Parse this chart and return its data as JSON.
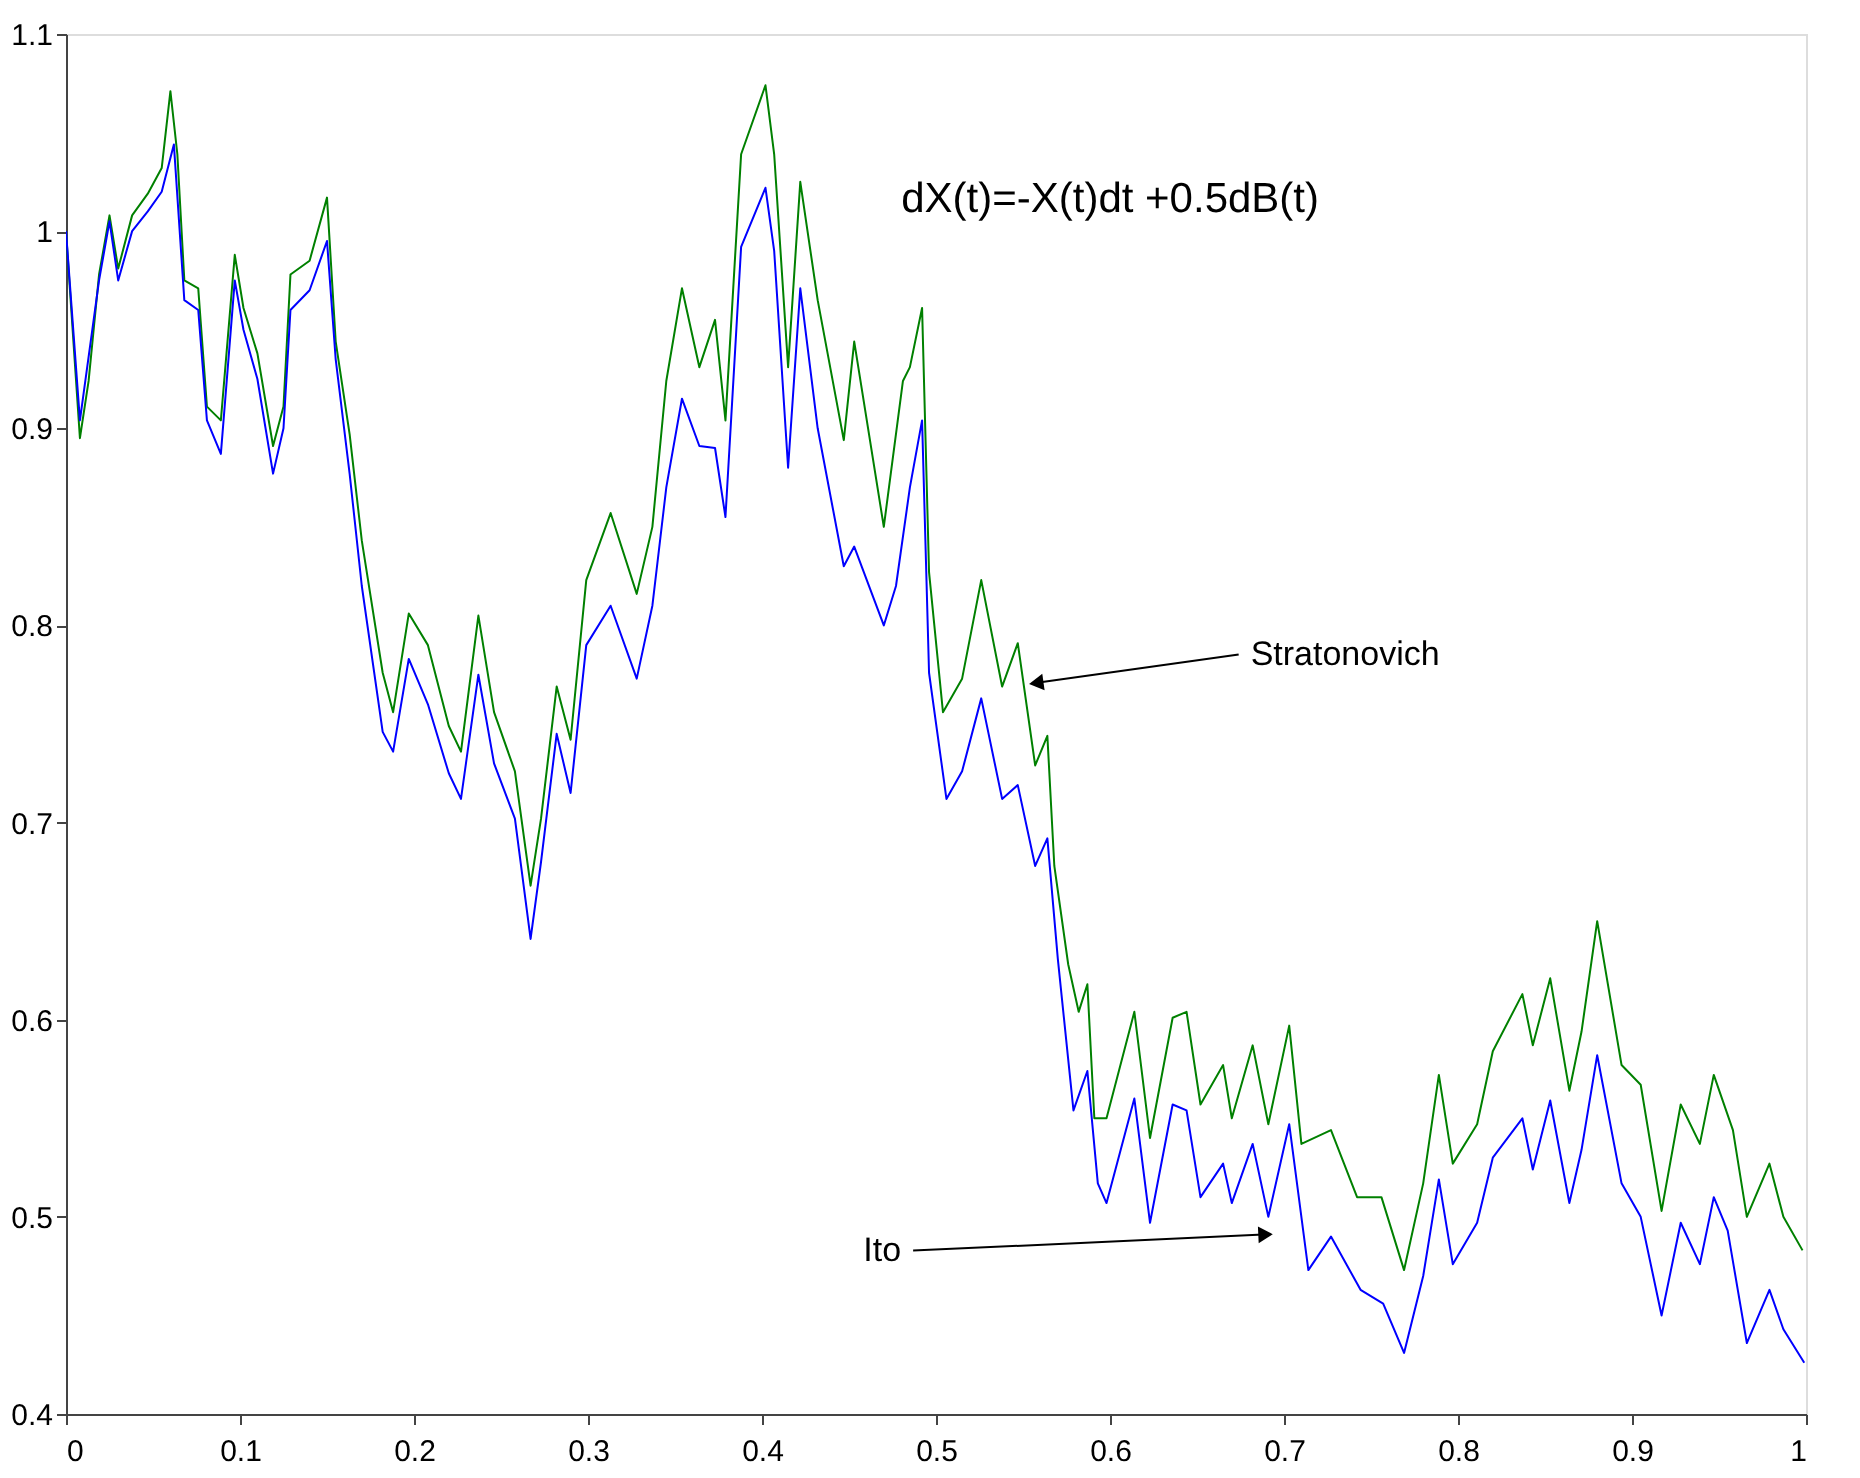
{
  "chart_data": {
    "type": "line",
    "xlim": [
      0,
      1
    ],
    "ylim": [
      0.4,
      1.1
    ],
    "xticks": [
      0,
      0.1,
      0.2,
      0.3,
      0.4,
      0.5,
      0.6,
      0.7,
      0.8,
      0.9,
      1
    ],
    "yticks": [
      0.4,
      0.5,
      0.6,
      0.7,
      0.8,
      0.9,
      1,
      1.1
    ],
    "grid": false,
    "line_style": "solid",
    "series": [
      {
        "color": "#008000",
        "x": [
          0,
          0.008,
          0.013,
          0.019,
          0.025,
          0.03,
          0.038,
          0.047,
          0.055,
          0.06,
          0.064,
          0.068,
          0.076,
          0.081,
          0.089,
          0.097,
          0.102,
          0.11,
          0.119,
          0.125,
          0.129,
          0.14,
          0.15,
          0.155,
          0.163,
          0.17,
          0.182,
          0.188,
          0.197,
          0.208,
          0.22,
          0.227,
          0.237,
          0.246,
          0.258,
          0.267,
          0.273,
          0.282,
          0.29,
          0.299,
          0.313,
          0.328,
          0.337,
          0.345,
          0.354,
          0.364,
          0.373,
          0.379,
          0.388,
          0.402,
          0.407,
          0.415,
          0.422,
          0.432,
          0.447,
          0.453,
          0.47,
          0.481,
          0.485,
          0.492,
          0.496,
          0.504,
          0.515,
          0.526,
          0.538,
          0.547,
          0.557,
          0.564,
          0.568,
          0.576,
          0.582,
          0.587,
          0.591,
          0.598,
          0.614,
          0.623,
          0.636,
          0.644,
          0.652,
          0.665,
          0.67,
          0.682,
          0.691,
          0.703,
          0.71,
          0.727,
          0.742,
          0.756,
          0.769,
          0.78,
          0.789,
          0.797,
          0.811,
          0.82,
          0.837,
          0.843,
          0.853,
          0.864,
          0.871,
          0.88,
          0.894,
          0.905,
          0.917,
          0.928,
          0.939,
          0.947,
          0.958,
          0.966,
          0.979,
          0.987,
          0.998
        ],
        "values": [
          1.0,
          0.895,
          0.924,
          0.978,
          1.008,
          0.981,
          1.008,
          1.019,
          1.032,
          1.071,
          1.039,
          0.975,
          0.971,
          0.911,
          0.904,
          0.988,
          0.961,
          0.938,
          0.891,
          0.911,
          0.978,
          0.985,
          1.017,
          0.944,
          0.897,
          0.843,
          0.776,
          0.756,
          0.806,
          0.79,
          0.749,
          0.736,
          0.805,
          0.756,
          0.726,
          0.668,
          0.702,
          0.769,
          0.742,
          0.823,
          0.857,
          0.816,
          0.85,
          0.924,
          0.971,
          0.931,
          0.955,
          0.904,
          1.039,
          1.074,
          1.039,
          0.931,
          1.025,
          0.965,
          0.894,
          0.944,
          0.85,
          0.924,
          0.931,
          0.961,
          0.827,
          0.756,
          0.773,
          0.823,
          0.769,
          0.791,
          0.729,
          0.744,
          0.678,
          0.628,
          0.604,
          0.618,
          0.55,
          0.55,
          0.604,
          0.54,
          0.601,
          0.604,
          0.557,
          0.577,
          0.55,
          0.587,
          0.547,
          0.597,
          0.537,
          0.544,
          0.51,
          0.51,
          0.473,
          0.517,
          0.572,
          0.527,
          0.547,
          0.584,
          0.613,
          0.587,
          0.621,
          0.564,
          0.594,
          0.65,
          0.577,
          0.567,
          0.503,
          0.557,
          0.537,
          0.572,
          0.544,
          0.5,
          0.527,
          0.5,
          0.483
        ]
      },
      {
        "color": "#0000ff",
        "x": [
          0,
          0.008,
          0.019,
          0.025,
          0.03,
          0.038,
          0.047,
          0.055,
          0.062,
          0.068,
          0.076,
          0.081,
          0.089,
          0.097,
          0.102,
          0.11,
          0.119,
          0.125,
          0.129,
          0.14,
          0.15,
          0.155,
          0.163,
          0.17,
          0.182,
          0.188,
          0.197,
          0.208,
          0.22,
          0.227,
          0.237,
          0.246,
          0.258,
          0.267,
          0.273,
          0.282,
          0.29,
          0.299,
          0.313,
          0.328,
          0.337,
          0.345,
          0.354,
          0.364,
          0.373,
          0.379,
          0.388,
          0.402,
          0.407,
          0.415,
          0.422,
          0.432,
          0.447,
          0.453,
          0.47,
          0.477,
          0.485,
          0.492,
          0.496,
          0.506,
          0.515,
          0.526,
          0.538,
          0.547,
          0.557,
          0.564,
          0.57,
          0.579,
          0.587,
          0.593,
          0.598,
          0.614,
          0.623,
          0.636,
          0.644,
          0.652,
          0.665,
          0.67,
          0.682,
          0.691,
          0.703,
          0.714,
          0.727,
          0.744,
          0.757,
          0.769,
          0.78,
          0.789,
          0.797,
          0.811,
          0.82,
          0.837,
          0.843,
          0.853,
          0.864,
          0.871,
          0.88,
          0.894,
          0.905,
          0.917,
          0.928,
          0.939,
          0.947,
          0.955,
          0.966,
          0.979,
          0.987,
          0.999
        ],
        "values": [
          1.0,
          0.904,
          0.975,
          1.005,
          0.975,
          1.0,
          1.01,
          1.02,
          1.044,
          0.965,
          0.96,
          0.904,
          0.887,
          0.975,
          0.95,
          0.925,
          0.877,
          0.9,
          0.96,
          0.97,
          0.995,
          0.935,
          0.877,
          0.82,
          0.746,
          0.736,
          0.783,
          0.76,
          0.725,
          0.712,
          0.775,
          0.73,
          0.702,
          0.641,
          0.68,
          0.745,
          0.715,
          0.79,
          0.81,
          0.773,
          0.81,
          0.87,
          0.915,
          0.891,
          0.89,
          0.855,
          0.992,
          1.022,
          0.99,
          0.88,
          0.971,
          0.9,
          0.83,
          0.84,
          0.8,
          0.82,
          0.87,
          0.904,
          0.776,
          0.712,
          0.726,
          0.763,
          0.712,
          0.719,
          0.678,
          0.692,
          0.631,
          0.554,
          0.574,
          0.517,
          0.507,
          0.56,
          0.497,
          0.557,
          0.554,
          0.51,
          0.527,
          0.507,
          0.537,
          0.5,
          0.547,
          0.473,
          0.49,
          0.463,
          0.456,
          0.431,
          0.47,
          0.519,
          0.476,
          0.497,
          0.53,
          0.55,
          0.524,
          0.559,
          0.507,
          0.534,
          0.582,
          0.517,
          0.5,
          0.45,
          0.497,
          0.476,
          0.51,
          0.493,
          0.436,
          0.463,
          0.443,
          0.426
        ]
      }
    ],
    "annotations": [
      "dX(t)=-X(t)dt +0.5dB(t)",
      {
        "text": "Stratonovich",
        "x": 0.559,
        "y": 0.771
      },
      {
        "text": "Ito",
        "x": 0.688,
        "y": 0.491
      }
    ]
  }
}
